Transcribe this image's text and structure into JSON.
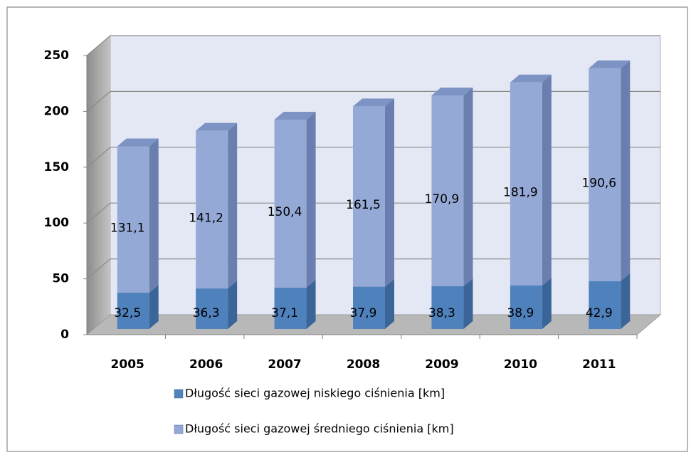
{
  "chart_data": {
    "type": "bar3d_stacked",
    "categories": [
      "2005",
      "2006",
      "2007",
      "2008",
      "2009",
      "2010",
      "2011"
    ],
    "series": [
      {
        "name": "Długość sieci gazowej niskiego ciśnienia [km]",
        "color": "#4f81bd",
        "values": [
          32.5,
          36.3,
          37.1,
          37.9,
          38.3,
          38.9,
          42.9
        ],
        "value_labels": [
          "32,5",
          "36,3",
          "37,1",
          "37,9",
          "38,3",
          "38,9",
          "42,9"
        ]
      },
      {
        "name": "Długość sieci gazowej średniego ciśnienia [km]",
        "color": "#95a9d6",
        "values": [
          131.1,
          141.2,
          150.4,
          161.5,
          170.9,
          181.9,
          190.6
        ],
        "value_labels": [
          "131,1",
          "141,2",
          "150,4",
          "161,5",
          "170,9",
          "181,9",
          "190,6"
        ]
      }
    ],
    "ylim": [
      0,
      250
    ],
    "yticks": [
      0,
      50,
      100,
      150,
      200,
      250
    ],
    "grid": true
  }
}
